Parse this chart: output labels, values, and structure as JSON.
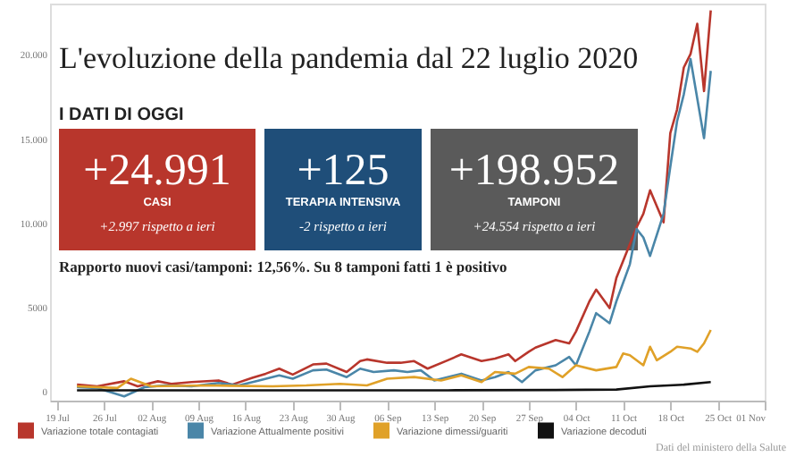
{
  "chart_data": {
    "type": "line",
    "title": "L'evoluzione della pandemia dal 22 luglio 2020",
    "annotations": [
      "I DATI DI OGGI",
      "+24.991",
      "CASI",
      "+2.997 rispetto a ieri",
      "+125",
      "TERAPIA INTENSIVA",
      "-2 rispetto a ieri",
      "+198.952",
      "TAMPONI",
      "+24.554 rispetto a ieri",
      "Rapporto nuovi casi/tamponi: 12,56%. Su 8 tamponi fatti 1 è positivo",
      "Dati del ministero della Salute"
    ],
    "xlim": [
      "--07-18",
      "--11-01"
    ],
    "xticks": [
      {
        "value": "--07-19",
        "label": "19 Jul"
      },
      {
        "value": "--07-26",
        "label": "26 Jul"
      },
      {
        "value": "--08-02",
        "label": "02 Aug"
      },
      {
        "value": "--08-09",
        "label": "09 Aug"
      },
      {
        "value": "--08-16",
        "label": "16 Aug"
      },
      {
        "value": "--08-23",
        "label": "23 Aug"
      },
      {
        "value": "--08-30",
        "label": "30 Aug"
      },
      {
        "value": "--09-06",
        "label": "06 Sep"
      },
      {
        "value": "--09-13",
        "label": "13 Sep"
      },
      {
        "value": "--09-20",
        "label": "20 Sep"
      },
      {
        "value": "--09-27",
        "label": "27 Sep"
      },
      {
        "value": "--10-04",
        "label": "04 Oct"
      },
      {
        "value": "--10-11",
        "label": "11 Oct"
      },
      {
        "value": "--10-18",
        "label": "18 Oct"
      },
      {
        "value": "--10-25",
        "label": "25 Oct"
      },
      {
        "value": "--11-01",
        "label": "01 Nov"
      }
    ],
    "ylim": [
      -600,
      23000
    ],
    "yticks": [
      0,
      5000,
      {
        "value": 10000,
        "label": "10.000"
      },
      {
        "value": 15000,
        "label": "15.000"
      },
      {
        "value": 20000,
        "label": "20.000"
      }
    ],
    "grid": false,
    "legend": "bottom",
    "marker": "none",
    "line_style": "solid",
    "series": [
      {
        "name": "Variazione totale contagiati",
        "color": "#b8362c",
        "x": [
          "--07-22",
          "--07-25",
          "--07-29",
          "--07-31",
          "--08-03",
          "--08-05",
          "--08-08",
          "--08-12",
          "--08-14",
          "--08-17",
          "--08-19",
          "--08-21",
          "--08-23",
          "--08-26",
          "--08-28",
          "--08-31",
          "--09-02",
          "--09-03",
          "--09-06",
          "--09-08",
          "--09-10",
          "--09-12",
          "--09-15",
          "--09-17",
          "--09-20",
          "--09-22",
          "--09-24",
          "--09-25",
          "--09-27",
          "--09-28",
          "--10-01",
          "--10-03",
          "--10-04",
          "--10-06",
          "--10-07",
          "--10-09",
          "--10-10",
          "--10-12",
          "--10-13",
          "--10-14",
          "--10-15",
          "--10-17",
          "--10-18",
          "--10-19",
          "--10-20",
          "--10-21",
          "--10-22",
          "--10-23",
          "--10-24"
        ],
        "values": [
          350,
          250,
          550,
          250,
          550,
          400,
          500,
          600,
          350,
          750,
          1000,
          1300,
          950,
          1550,
          1600,
          1100,
          1750,
          1850,
          1650,
          1650,
          1750,
          1300,
          1800,
          2150,
          1750,
          1900,
          2150,
          1750,
          2300,
          2550,
          3000,
          2800,
          3500,
          5300,
          6000,
          4900,
          6700,
          8700,
          9700,
          10500,
          11900,
          10000,
          15300,
          16700,
          19200,
          20000,
          21800,
          17800,
          22600
        ]
      },
      {
        "name": "Variazione Attualmente positivi",
        "color": "#4a86a8",
        "x": [
          "--07-22",
          "--07-25",
          "--07-29",
          "--08-01",
          "--08-04",
          "--08-08",
          "--08-12",
          "--08-15",
          "--08-18",
          "--08-21",
          "--08-23",
          "--08-26",
          "--08-28",
          "--08-31",
          "--09-02",
          "--09-04",
          "--09-07",
          "--09-09",
          "--09-11",
          "--09-13",
          "--09-15",
          "--09-17",
          "--09-20",
          "--09-22",
          "--09-24",
          "--09-26",
          "--09-28",
          "--10-01",
          "--10-03",
          "--10-04",
          "--10-06",
          "--10-07",
          "--10-09",
          "--10-10",
          "--10-12",
          "--10-13",
          "--10-14",
          "--10-15",
          "--10-17",
          "--10-18",
          "--10-19",
          "--10-20",
          "--10-21",
          "--10-23",
          "--10-24"
        ],
        "values": [
          200,
          150,
          -350,
          200,
          300,
          250,
          450,
          300,
          600,
          900,
          700,
          1200,
          1250,
          800,
          1300,
          1100,
          1200,
          1100,
          1200,
          600,
          800,
          1000,
          600,
          800,
          1100,
          500,
          1200,
          1500,
          2000,
          1500,
          3500,
          4600,
          4000,
          5300,
          7500,
          9600,
          9100,
          8000,
          10500,
          13300,
          16000,
          17600,
          19700,
          15000,
          19000
        ]
      },
      {
        "name": "Variazione dimessi/guariti",
        "color": "#e0a128",
        "x": [
          "--07-22",
          "--07-28",
          "--07-30",
          "--08-02",
          "--08-10",
          "--08-20",
          "--08-25",
          "--08-30",
          "--09-03",
          "--09-06",
          "--09-10",
          "--09-14",
          "--09-17",
          "--09-20",
          "--09-22",
          "--09-25",
          "--09-27",
          "--09-30",
          "--10-02",
          "--10-04",
          "--10-07",
          "--10-10",
          "--10-11",
          "--10-12",
          "--10-14",
          "--10-15",
          "--10-16",
          "--10-18",
          "--10-19",
          "--10-21",
          "--10-22",
          "--10-23",
          "--10-24"
        ],
        "values": [
          250,
          150,
          700,
          250,
          300,
          250,
          300,
          400,
          300,
          700,
          800,
          600,
          900,
          500,
          1100,
          1000,
          1400,
          1300,
          800,
          1500,
          1200,
          1400,
          2200,
          2100,
          1500,
          2600,
          1800,
          2300,
          2600,
          2500,
          2300,
          2800,
          3600
        ]
      },
      {
        "name": "Variazione decoduti",
        "color": "#111111",
        "x": [
          "--07-22",
          "--08-15",
          "--09-15",
          "--10-01",
          "--10-10",
          "--10-15",
          "--10-20",
          "--10-24"
        ],
        "values": [
          10,
          10,
          15,
          30,
          60,
          250,
          350,
          500
        ]
      }
    ]
  }
}
